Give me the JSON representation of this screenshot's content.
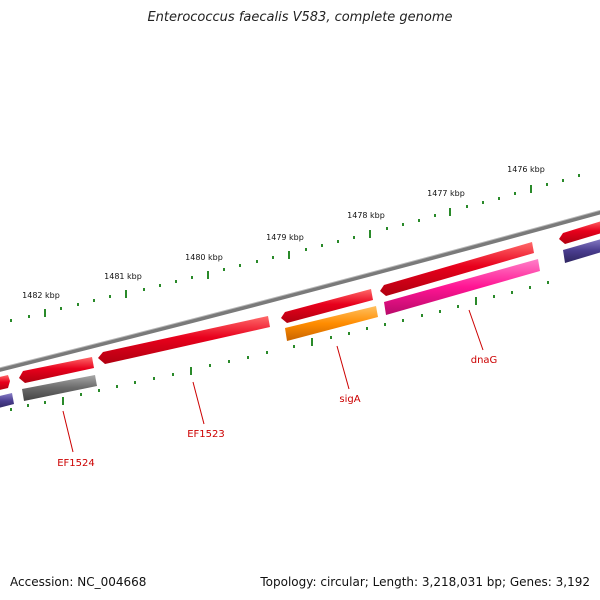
{
  "title": "Enterococcus faecalis V583, complete genome",
  "footer": {
    "accession": "Accession: NC_004668",
    "summary": "Topology: circular; Length: 3,218,031 bp; Genes: 3,192"
  },
  "colors": {
    "backbone": "#888888",
    "ticks": "#2a8a2a",
    "gene_red": "#e8001c",
    "label_red": "#cc0000",
    "orange": "#ff8800",
    "magenta": "#ff1493",
    "dark_gray": "#666666",
    "navy": "#4a3d8f"
  },
  "scale_labels": [
    "1476 kbp",
    "1477 kbp",
    "1478 kbp",
    "1479 kbp",
    "1480 kbp",
    "1481 kbp",
    "1482 kbp"
  ],
  "gene_labels": [
    "dnaG",
    "sigA",
    "EF1523",
    "EF1524"
  ]
}
